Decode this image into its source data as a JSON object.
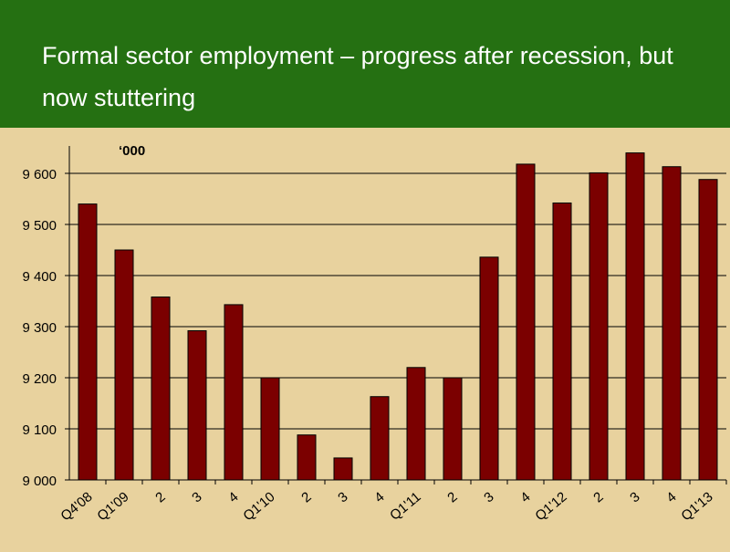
{
  "slide": {
    "title": "Formal sector employment – progress after recession, but now stuttering"
  },
  "colors": {
    "header_background": "#257012",
    "plot_background": "#e8d29e",
    "bar_fill": "#7b0000"
  },
  "chart_data": {
    "type": "bar",
    "title": "",
    "unit_label": "‘000",
    "xlabel": "",
    "ylabel": "",
    "ylim": [
      9000,
      9600
    ],
    "y_ticks": [
      9000,
      9100,
      9200,
      9300,
      9400,
      9500,
      9600
    ],
    "y_tick_labels": [
      "9 000",
      "9 100",
      "9 200",
      "9 300",
      "9 400",
      "9 500",
      "9 600"
    ],
    "grid": true,
    "categories": [
      "Q4'08",
      "Q1'09",
      "2",
      "3",
      "4",
      "Q1'10",
      "2",
      "3",
      "4",
      "Q1'11",
      "2",
      "3",
      "4",
      "Q1'12",
      "2",
      "3",
      "4",
      "Q1'13"
    ],
    "values": [
      9540,
      9450,
      9358,
      9292,
      9343,
      9200,
      9088,
      9043,
      9163,
      9220,
      9200,
      9436,
      9618,
      9542,
      9601,
      9640,
      9613,
      9588
    ]
  }
}
